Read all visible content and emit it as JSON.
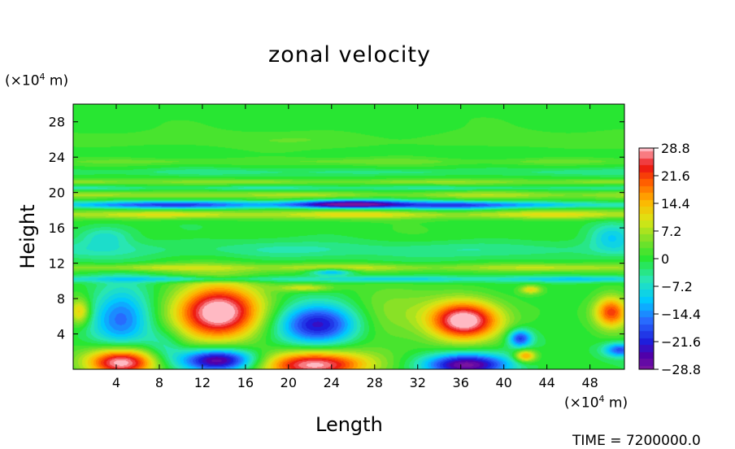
{
  "chart_data": {
    "type": "heatmap",
    "title": "zonal velocity",
    "xlabel": "Length",
    "ylabel": "Height",
    "x_unit": {
      "prefix": "(×10",
      "exp": "4",
      "suffix": " m)"
    },
    "y_unit": {
      "prefix": "(×10",
      "exp": "4",
      "suffix": " m)"
    },
    "xlim": [
      0,
      51.2
    ],
    "ylim": [
      0,
      30
    ],
    "x_ticks": [
      "4",
      "8",
      "12",
      "16",
      "20",
      "24",
      "28",
      "32",
      "36",
      "40",
      "44",
      "48"
    ],
    "y_ticks": [
      "4",
      "8",
      "12",
      "16",
      "20",
      "24",
      "28"
    ],
    "colorbar": {
      "ticks": [
        "28.8",
        "21.6",
        "14.4",
        "7.2",
        "0",
        "−7.2",
        "−14.4",
        "−21.6",
        "−28.8"
      ],
      "tick_values": [
        28.8,
        21.6,
        14.4,
        7.2,
        0,
        -7.2,
        -14.4,
        -21.6,
        -28.8
      ],
      "vmin": -28.8,
      "vmax": 28.8
    },
    "features": [
      {
        "x": 4.5,
        "y": 0.8,
        "value": 30,
        "rx": 3.2,
        "ry": 1.6
      },
      {
        "x": 13.5,
        "y": 1.0,
        "value": -29,
        "rx": 3.5,
        "ry": 1.3
      },
      {
        "x": 22.5,
        "y": 0.5,
        "value": 30,
        "rx": 5.0,
        "ry": 1.6
      },
      {
        "x": 36.5,
        "y": 0.5,
        "value": -29,
        "rx": 4.0,
        "ry": 1.3
      },
      {
        "x": 42,
        "y": 1.5,
        "value": 18,
        "rx": 1.0,
        "ry": 0.7
      },
      {
        "x": 50.8,
        "y": 2.2,
        "value": -18,
        "rx": 1.5,
        "ry": 0.8
      },
      {
        "x": 4.5,
        "y": 6.0,
        "value": -16,
        "rx": 2.8,
        "ry": 3.5
      },
      {
        "x": 13.5,
        "y": 6.5,
        "value": 32,
        "rx": 4.0,
        "ry": 3.2
      },
      {
        "x": 22.8,
        "y": 5.0,
        "value": -24,
        "rx": 3.8,
        "ry": 2.3
      },
      {
        "x": 36.3,
        "y": 5.5,
        "value": 32,
        "rx": 3.3,
        "ry": 2.2
      },
      {
        "x": 41.5,
        "y": 3.5,
        "value": -20,
        "rx": 1.1,
        "ry": 1.0
      },
      {
        "x": 50.0,
        "y": 6.5,
        "value": 22,
        "rx": 1.6,
        "ry": 1.8
      },
      {
        "x": 0.6,
        "y": 6.5,
        "value": 14,
        "rx": 1.0,
        "ry": 1.5
      },
      {
        "x": 29.0,
        "y": 6.0,
        "value": 6,
        "rx": 4.0,
        "ry": 3.0
      },
      {
        "x": 8.5,
        "y": 2.5,
        "value": -6,
        "rx": 1.8,
        "ry": 2.0
      },
      {
        "x": 42.5,
        "y": 9.0,
        "value": 12,
        "rx": 1.0,
        "ry": 0.5
      },
      {
        "x": 21.5,
        "y": 9.2,
        "value": 10,
        "rx": 2.5,
        "ry": 0.4
      },
      {
        "x": 26.0,
        "y": 18.7,
        "value": -22,
        "rx": 5.0,
        "ry": 0.5
      },
      {
        "x": 35.0,
        "y": 18.5,
        "value": -12,
        "rx": 5.0,
        "ry": 0.5
      },
      {
        "x": 11.0,
        "y": 18.6,
        "value": -12,
        "rx": 6.0,
        "ry": 0.5
      },
      {
        "x": 24.0,
        "y": 11.0,
        "value": -14,
        "rx": 2.0,
        "ry": 0.4
      },
      {
        "x": 50.0,
        "y": 15.0,
        "value": -9,
        "rx": 2.0,
        "ry": 1.5
      },
      {
        "x": 3.0,
        "y": 15.0,
        "value": -8,
        "rx": 2.5,
        "ry": 1.2
      }
    ],
    "bands": [
      {
        "y": 10.2,
        "value": -8,
        "hw": 0.35
      },
      {
        "y": 11.5,
        "value": 7,
        "hw": 0.45
      },
      {
        "y": 13.5,
        "value": -4,
        "hw": 1.0
      },
      {
        "y": 17.5,
        "value": 9,
        "hw": 0.5
      },
      {
        "y": 18.6,
        "value": -9,
        "hw": 0.35
      },
      {
        "y": 19.7,
        "value": 6,
        "hw": 0.4
      },
      {
        "y": 20.5,
        "value": -4,
        "hw": 0.25
      },
      {
        "y": 21.2,
        "value": 5,
        "hw": 0.3
      },
      {
        "y": 22.3,
        "value": -3,
        "hw": 0.4
      },
      {
        "y": 23.5,
        "value": 3,
        "hw": 0.4
      },
      {
        "y": 26.0,
        "value": 2,
        "hw": 1.0
      }
    ]
  },
  "footer": {
    "time_text": "TIME = 7200000.0"
  }
}
